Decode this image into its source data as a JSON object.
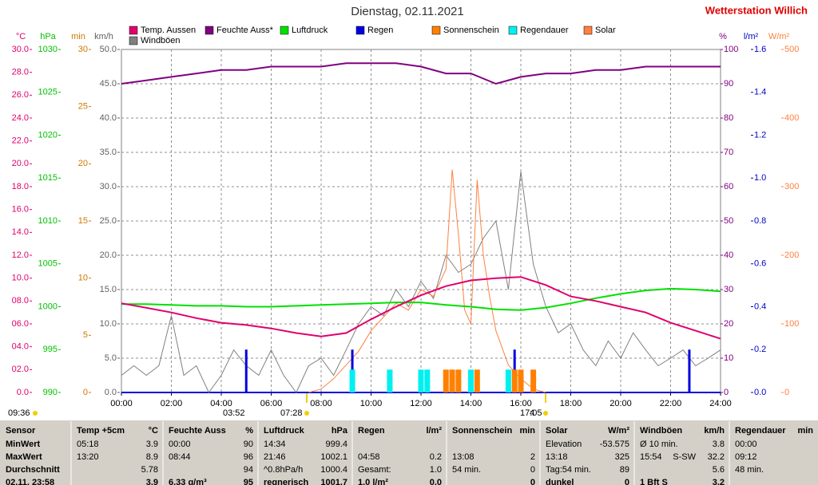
{
  "chart_data": {
    "type": "line",
    "title": "Dienstag, 02.11.2021",
    "brand": "Wetterstation Willich",
    "xlim": [
      0,
      24
    ],
    "xticks": [
      {
        "value": 0,
        "label": "00:00"
      },
      {
        "value": 2,
        "label": "02:00"
      },
      {
        "value": 4,
        "label": "04:00"
      },
      {
        "value": 6,
        "label": "06:00"
      },
      {
        "value": 8,
        "label": "08:00"
      },
      {
        "value": 10,
        "label": "10:00"
      },
      {
        "value": 12,
        "label": "12:00"
      },
      {
        "value": 14,
        "label": "14:00"
      },
      {
        "value": 16,
        "label": "16:00"
      },
      {
        "value": 18,
        "label": "18:00"
      },
      {
        "value": 20,
        "label": "20:00"
      },
      {
        "value": 22,
        "label": "22:00"
      },
      {
        "value": 24,
        "label": "24:00"
      }
    ],
    "grid": true,
    "axes": [
      {
        "label": "°C",
        "side": "left",
        "color": "#e0006e",
        "lim": [
          0,
          30
        ],
        "ticks": [
          {
            "value": 0,
            "label": "0.0"
          },
          {
            "value": 2,
            "label": "02.0"
          },
          {
            "value": 4,
            "label": "04.0"
          },
          {
            "value": 6,
            "label": "06.0"
          },
          {
            "value": 8,
            "label": "08.0"
          },
          {
            "value": 10,
            "label": "10.0"
          },
          {
            "value": 12,
            "label": "12.0"
          },
          {
            "value": 14,
            "label": "14.0"
          },
          {
            "value": 16,
            "label": "16.0"
          },
          {
            "value": 18,
            "label": "18.0"
          },
          {
            "value": 20,
            "label": "20.0"
          },
          {
            "value": 22,
            "label": "22.0"
          },
          {
            "value": 24,
            "label": "24.0"
          },
          {
            "value": 26,
            "label": "26.0"
          },
          {
            "value": 28,
            "label": "28.0"
          },
          {
            "value": 30,
            "label": "30.0"
          }
        ]
      },
      {
        "label": "hPa",
        "side": "left",
        "color": "#00c000",
        "lim": [
          990,
          1030
        ],
        "ticks": [
          990,
          995,
          1000,
          1005,
          1010,
          1015,
          1020,
          1025,
          1030
        ]
      },
      {
        "label": "min",
        "side": "left",
        "color": "#d07800",
        "lim": [
          0,
          30
        ],
        "ticks": [
          0,
          5,
          10,
          15,
          20,
          25,
          30
        ]
      },
      {
        "label": "km/h",
        "side": "left",
        "color": "#606060",
        "lim": [
          0,
          50
        ],
        "grid": true,
        "ticks": [
          {
            "value": 0,
            "label": "0.0"
          },
          {
            "value": 5,
            "label": "5.0"
          },
          {
            "value": 10,
            "label": "10.0"
          },
          {
            "value": 15,
            "label": "15.0"
          },
          {
            "value": 20,
            "label": "20.0"
          },
          {
            "value": 25,
            "label": "25.0"
          },
          {
            "value": 30,
            "label": "30.0"
          },
          {
            "value": 35,
            "label": "35.0"
          },
          {
            "value": 40,
            "label": "40.0"
          },
          {
            "value": 45,
            "label": "45.0"
          },
          {
            "value": 50,
            "label": "50.0"
          }
        ]
      },
      {
        "label": "%",
        "side": "right",
        "color": "#800080",
        "lim": [
          0,
          100
        ],
        "ticks": [
          0,
          10,
          20,
          30,
          40,
          50,
          60,
          70,
          80,
          90,
          100
        ]
      },
      {
        "label": "l/m²",
        "side": "right",
        "color": "#0000c0",
        "lim": [
          0,
          1.6
        ],
        "ticks": [
          {
            "value": 0,
            "label": "0.0"
          },
          {
            "value": 0.2,
            "label": "0.2"
          },
          {
            "value": 0.4,
            "label": "0.4"
          },
          {
            "value": 0.6,
            "label": "0.6"
          },
          {
            "value": 0.8,
            "label": "0.8"
          },
          {
            "value": 1.0,
            "label": "1.0"
          },
          {
            "value": 1.2,
            "label": "1.2"
          },
          {
            "value": 1.4,
            "label": "1.4"
          },
          {
            "value": 1.6,
            "label": "1.6"
          }
        ]
      },
      {
        "label": "W/m²",
        "side": "right",
        "color": "#ff8040",
        "lim": [
          0,
          500
        ],
        "ticks": [
          0,
          100,
          200,
          300,
          400,
          500
        ]
      }
    ],
    "series": [
      {
        "name": "Windböen",
        "type": "line",
        "color": "#808080",
        "axis": 3,
        "x": [
          0,
          0.5,
          1,
          1.5,
          2,
          2.5,
          3,
          3.5,
          4,
          4.5,
          5,
          5.5,
          6,
          6.5,
          7,
          7.5,
          8,
          8.5,
          9,
          9.5,
          10,
          10.5,
          11,
          11.5,
          12,
          12.5,
          13,
          13.5,
          14,
          14.5,
          15,
          15.5,
          16,
          16.5,
          17,
          17.5,
          18,
          18.5,
          19,
          19.5,
          20,
          20.5,
          21,
          21.5,
          22,
          22.5,
          23,
          23.5,
          24
        ],
        "values": [
          2.5,
          3.9,
          2.5,
          3.9,
          11.2,
          2.5,
          3.9,
          0,
          2.5,
          6.2,
          3.9,
          2.5,
          6.2,
          2.5,
          0,
          3.9,
          5,
          2.5,
          6.2,
          10,
          12.5,
          11.2,
          15,
          12.5,
          16.2,
          13.7,
          20,
          17.5,
          18.7,
          22.5,
          25,
          15,
          32.2,
          18.7,
          12.5,
          8.7,
          10,
          6.2,
          3.9,
          7.5,
          5,
          8.7,
          6.2,
          3.9,
          5,
          6.2,
          3.9,
          5,
          6.2
        ]
      },
      {
        "name": "Solar",
        "type": "line",
        "color": "#ff8040",
        "axis": 6,
        "x": [
          7.5,
          8,
          8.5,
          9,
          9.5,
          10,
          10.5,
          11,
          11.5,
          12,
          12.5,
          13,
          13.25,
          13.5,
          13.75,
          14,
          14.25,
          14.5,
          14.75,
          15,
          15.5,
          16,
          16.5,
          17
        ],
        "values": [
          0,
          5,
          20,
          40,
          60,
          90,
          110,
          130,
          120,
          150,
          140,
          180,
          325,
          230,
          120,
          100,
          310,
          200,
          140,
          90,
          40,
          20,
          5,
          0
        ]
      },
      {
        "name": "Regen",
        "type": "bar",
        "color": "#0000e0",
        "axis": 5,
        "x": [
          5,
          9.25,
          15.75,
          22.75
        ],
        "values": [
          0.2,
          0.2,
          0.2,
          0.2
        ]
      },
      {
        "name": "Sonnenschein",
        "type": "bar",
        "color": "#ff8000",
        "axis": 2,
        "x": [
          13,
          13.25,
          13.5,
          14.25,
          15.75,
          16,
          16.5
        ],
        "values": [
          2,
          2,
          2,
          2,
          2,
          2,
          2
        ]
      },
      {
        "name": "Regendauer",
        "type": "bar",
        "color": "#00f0f0",
        "axis": 2,
        "x": [
          9.25,
          10.75,
          12,
          12.25,
          14,
          15.5
        ],
        "values": [
          2,
          2,
          2,
          2,
          2,
          2
        ]
      },
      {
        "name": "Luftdruck",
        "type": "line",
        "color": "#00e000",
        "axis": 1,
        "x": [
          0,
          1,
          2,
          3,
          4,
          5,
          6,
          7,
          8,
          9,
          10,
          11,
          12,
          13,
          14,
          15,
          16,
          17,
          18,
          19,
          20,
          21,
          22,
          23,
          24
        ],
        "values": [
          1000.3,
          1000.3,
          1000.2,
          1000.1,
          1000.1,
          1000.0,
          1000.0,
          1000.1,
          1000.2,
          1000.3,
          1000.4,
          1000.5,
          1000.5,
          1000.2,
          1000.0,
          999.7,
          999.6,
          999.9,
          1000.4,
          1001.0,
          1001.5,
          1001.9,
          1002.1,
          1002.0,
          1001.8
        ]
      },
      {
        "name": "Feuchte Auss*",
        "type": "line",
        "color": "#800080",
        "axis": 4,
        "x": [
          0,
          1,
          2,
          3,
          4,
          5,
          6,
          7,
          8,
          9,
          10,
          11,
          12,
          13,
          14,
          15,
          16,
          17,
          18,
          19,
          20,
          21,
          22,
          23,
          24
        ],
        "values": [
          90,
          91,
          92,
          93,
          94,
          94,
          95,
          95,
          95,
          96,
          96,
          96,
          95,
          93,
          93,
          90,
          92,
          93,
          93,
          94,
          94,
          95,
          95,
          95,
          95
        ]
      },
      {
        "name": "Temp. Aussen",
        "type": "line",
        "color": "#e0006e",
        "axis": 0,
        "x": [
          0,
          1,
          2,
          3,
          4,
          5,
          6,
          7,
          8,
          9,
          10,
          11,
          12,
          13,
          14,
          15,
          16,
          17,
          18,
          19,
          20,
          21,
          22,
          23,
          24
        ],
        "values": [
          7.8,
          7.4,
          7.0,
          6.5,
          6.1,
          5.9,
          5.6,
          5.2,
          4.9,
          5.2,
          6.4,
          7.5,
          8.5,
          9.3,
          9.8,
          10.0,
          10.1,
          9.4,
          8.4,
          8.0,
          7.5,
          7.0,
          6.1,
          5.4,
          4.7
        ]
      }
    ],
    "legend_order": [
      "Temp. Aussen",
      "Feuchte Auss*",
      "Luftdruck",
      "Regen",
      "Sonnenschein",
      "Regendauer",
      "Solar",
      "Windböen"
    ],
    "annotations": [
      "09:36",
      "03:52",
      "07:28",
      "17:05",
      "4"
    ]
  },
  "table": {
    "header": [
      {
        "left": "Sensor"
      },
      {
        "left": "Temp +5cm",
        "right": "°C"
      },
      {
        "left": "Feuchte Auss",
        "right": "%"
      },
      {
        "left": "Luftdruck",
        "right": "hPa"
      },
      {
        "left": "Regen",
        "right": "l/m²"
      },
      {
        "left": "Sonnenschein",
        "right": "min"
      },
      {
        "left": "Solar",
        "right": "W/m²"
      },
      {
        "left": "Windböen",
        "right": "km/h"
      },
      {
        "left": "Regendauer",
        "right": "min"
      }
    ],
    "rows": [
      [
        {
          "left": "MinWert"
        },
        {
          "left": "05:18",
          "right": "3.9"
        },
        {
          "left": "00:00",
          "right": "90"
        },
        {
          "left": "14:34",
          "right": "999.4"
        },
        {},
        {},
        {
          "left": "Elevation",
          "right": "-53.575"
        },
        {
          "left": "Ø 10 min.",
          "right": "3.8"
        },
        {
          "left": "00:00"
        }
      ],
      [
        {
          "left": "MaxWert"
        },
        {
          "left": "13:20",
          "right": "8.9"
        },
        {
          "left": "08:44",
          "right": "96"
        },
        {
          "left": "21:46",
          "right": "1002.1"
        },
        {
          "left": "04:58",
          "right": "0.2"
        },
        {
          "left": "13:08",
          "right": "2"
        },
        {
          "left": "13:18",
          "right": "325"
        },
        {
          "left": "15:54",
          "mid": "S-SW",
          "right": "32.2"
        },
        {
          "left": "09:12"
        }
      ],
      [
        {
          "left": "Durchschnitt"
        },
        {
          "right": "5.78"
        },
        {
          "right": "94"
        },
        {
          "left": "^0.8hPa/h",
          "right": "1000.4"
        },
        {
          "left": "Gesamt:",
          "right": "1.0"
        },
        {
          "left": "54 min.",
          "right": "0"
        },
        {
          "left": "Tag:54 min.",
          "right": "89"
        },
        {
          "right": "5.6"
        },
        {
          "left": "48 min."
        }
      ],
      [
        {
          "left": "02.11. 23:58"
        },
        {
          "right": "3.9"
        },
        {
          "left": "6.33 g/m³",
          "right": "95"
        },
        {
          "left": "regnerisch",
          "right": "1001.7"
        },
        {
          "left": "1.0 l/m²",
          "right": "0.0"
        },
        {
          "right": "0"
        },
        {
          "left": "dunkel",
          "right": "0"
        },
        {
          "left": "1 Bft S",
          "right": "3.2"
        },
        {}
      ]
    ]
  }
}
